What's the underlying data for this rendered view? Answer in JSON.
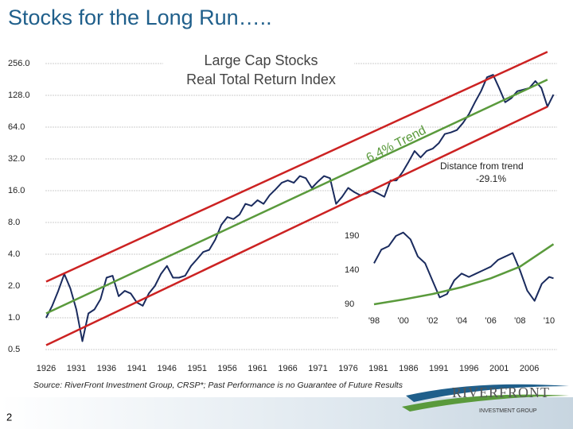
{
  "title": "Stocks for the Long Run…..",
  "source": "Source: RiverFront Investment Group, CRSP*; Past Performance is no Guarantee of Future Results",
  "footer": {
    "page_number": "2",
    "logo": "RIVERFRONT",
    "logo_sub": "INVESTMENT GROUP"
  },
  "chart_data": [
    {
      "type": "line",
      "title": "Large Cap Stocks",
      "subtitle": "Real Total Return Index",
      "yscale": "log",
      "grid": true,
      "xlim": [
        1926,
        2010
      ],
      "ylim": [
        0.5,
        256
      ],
      "xticks": [
        1926,
        1931,
        1936,
        1941,
        1946,
        1951,
        1956,
        1961,
        1966,
        1971,
        1976,
        1981,
        1986,
        1991,
        1996,
        2001,
        2006
      ],
      "yticks": [
        0.5,
        {
          "value": 1,
          "label": "1.0"
        },
        {
          "value": 2,
          "label": "2.0"
        },
        {
          "value": 4,
          "label": "4.0"
        },
        {
          "value": 8,
          "label": "8.0"
        },
        {
          "value": 16,
          "label": "16.0"
        },
        {
          "value": 32,
          "label": "32.0"
        },
        {
          "value": 64,
          "label": "64.0"
        },
        {
          "value": 128,
          "label": "128.0"
        },
        {
          "value": 256,
          "label": "256.0"
        }
      ],
      "annotations": {
        "trend": "6.4% Trend",
        "distance_title": "Distance from trend",
        "distance_value": "-29.1%"
      },
      "series": [
        {
          "color": "#1a2b5e",
          "x": [
            1926,
            1927,
            1928,
            1929,
            1930,
            1931,
            1932,
            1933,
            1934,
            1935,
            1936,
            1937,
            1938,
            1939,
            1940,
            1941,
            1942,
            1943,
            1944,
            1945,
            1946,
            1947,
            1948,
            1949,
            1950,
            1951,
            1952,
            1953,
            1954,
            1955,
            1956,
            1957,
            1958,
            1959,
            1960,
            1961,
            1962,
            1963,
            1964,
            1965,
            1966,
            1967,
            1968,
            1969,
            1970,
            1971,
            1972,
            1973,
            1974,
            1975,
            1976,
            1977,
            1978,
            1979,
            1980,
            1981,
            1982,
            1983,
            1984,
            1985,
            1986,
            1987,
            1988,
            1989,
            1990,
            1991,
            1992,
            1993,
            1994,
            1995,
            1996,
            1997,
            1998,
            1999,
            2000,
            2001,
            2002,
            2003,
            2004,
            2005,
            2006,
            2007,
            2008,
            2009,
            2010
          ],
          "values": [
            1.0,
            1.3,
            1.8,
            2.6,
            1.9,
            1.2,
            0.6,
            1.1,
            1.2,
            1.5,
            2.4,
            2.5,
            1.6,
            1.8,
            1.7,
            1.4,
            1.3,
            1.7,
            2.0,
            2.6,
            3.1,
            2.4,
            2.4,
            2.5,
            3.1,
            3.6,
            4.2,
            4.4,
            5.5,
            7.6,
            9.0,
            8.6,
            9.5,
            12.0,
            11.5,
            13.0,
            12.0,
            14.5,
            16.5,
            19.0,
            20.0,
            19.0,
            22.0,
            21.0,
            17.0,
            19.5,
            22.0,
            21.0,
            12.0,
            14.0,
            17.0,
            15.5,
            14.5,
            15.0,
            16.0,
            15.0,
            14.0,
            20.0,
            20.0,
            24.0,
            30.0,
            38.0,
            33.0,
            38.0,
            40.0,
            45.0,
            55.0,
            57.0,
            60.0,
            70.0,
            85.0,
            110.0,
            140.0,
            190.0,
            200.0,
            150.0,
            110.0,
            120.0,
            140.0,
            145.0,
            150.0,
            175.0,
            150.0,
            100.0,
            130.0
          ]
        },
        {
          "color": "#5a9a3c",
          "x": [
            1926,
            2009
          ],
          "values": [
            1.1,
            180
          ]
        },
        {
          "color": "#cc2222",
          "x": [
            1926,
            2009
          ],
          "values": [
            2.2,
            330
          ]
        },
        {
          "color": "#cc2222",
          "x": [
            1926,
            2009
          ],
          "values": [
            0.55,
            100
          ]
        }
      ]
    },
    {
      "type": "line",
      "grid": false,
      "xlim": [
        1997.7,
        2010.6
      ],
      "ylim": [
        80,
        200
      ],
      "xticks": [
        {
          "value": 1998,
          "label": "'98"
        },
        {
          "value": 2000,
          "label": "'00"
        },
        {
          "value": 2002,
          "label": "'02"
        },
        {
          "value": 2004,
          "label": "'04"
        },
        {
          "value": 2006,
          "label": "'06"
        },
        {
          "value": 2008,
          "label": "'08"
        },
        {
          "value": 2010,
          "label": "'10"
        }
      ],
      "yticks": [
        90,
        140,
        190
      ],
      "series": [
        {
          "color": "#1a2b5e",
          "x": [
            1998,
            1998.5,
            1999,
            1999.5,
            2000,
            2000.5,
            2001,
            2001.5,
            2002,
            2002.5,
            2003,
            2003.5,
            2004,
            2004.5,
            2005,
            2005.5,
            2006,
            2006.5,
            2007,
            2007.5,
            2008,
            2008.5,
            2009,
            2009.5,
            2010,
            2010.3
          ],
          "values": [
            150,
            170,
            175,
            190,
            195,
            185,
            160,
            150,
            125,
            100,
            105,
            125,
            135,
            130,
            135,
            140,
            145,
            155,
            160,
            165,
            140,
            110,
            95,
            120,
            130,
            128
          ]
        },
        {
          "color": "#5a9a3c",
          "x": [
            1998,
            2000,
            2002,
            2004,
            2006,
            2008,
            2010.3
          ],
          "values": [
            90,
            97,
            105,
            115,
            128,
            145,
            178
          ]
        }
      ]
    }
  ]
}
